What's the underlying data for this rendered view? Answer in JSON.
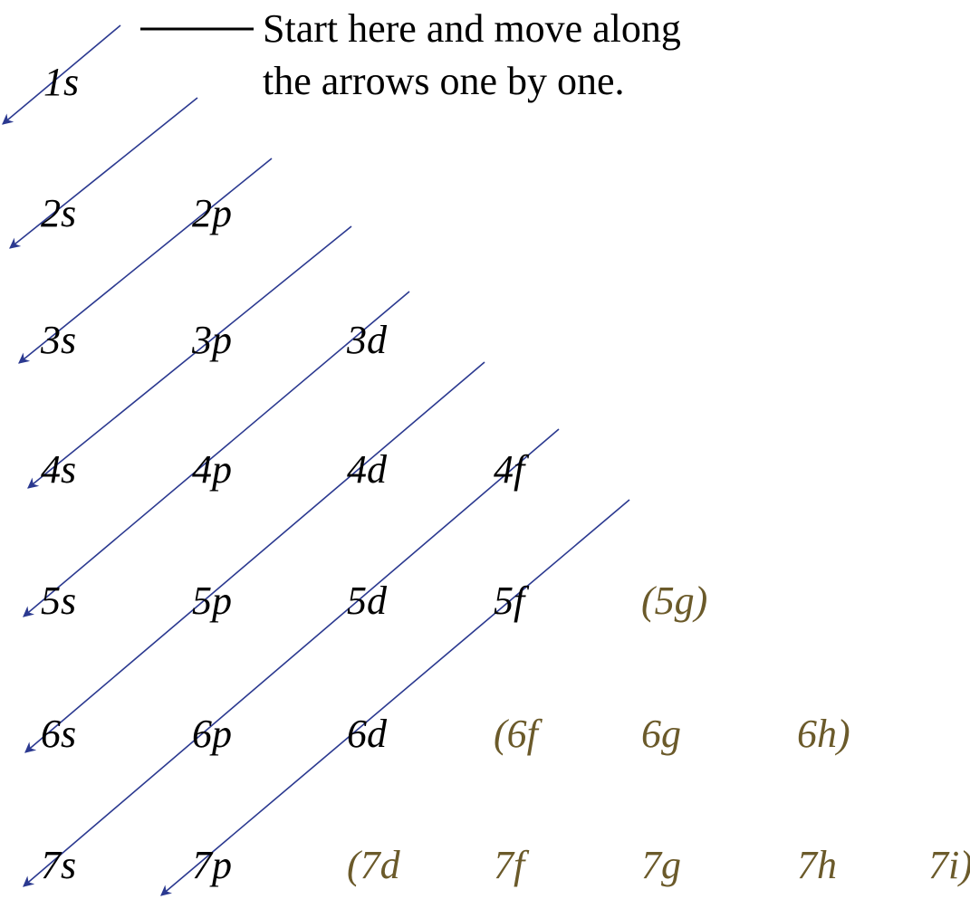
{
  "note": {
    "lines": [
      "Start here and move along",
      "the arrows one by one."
    ]
  },
  "orbitals": [
    [
      "1s"
    ],
    [
      "2s",
      "2p"
    ],
    [
      "3s",
      "3p",
      "3d"
    ],
    [
      "4s",
      "4p",
      "4d",
      "4f"
    ],
    [
      "5s",
      "5p",
      "5d",
      "5f",
      "(5g)"
    ],
    [
      "6s",
      "6p",
      "6d",
      "(6f",
      "6g",
      "6h)"
    ],
    [
      "7s",
      "7p",
      "(7d",
      "7f",
      "7g",
      "7h",
      "7i)"
    ]
  ]
}
